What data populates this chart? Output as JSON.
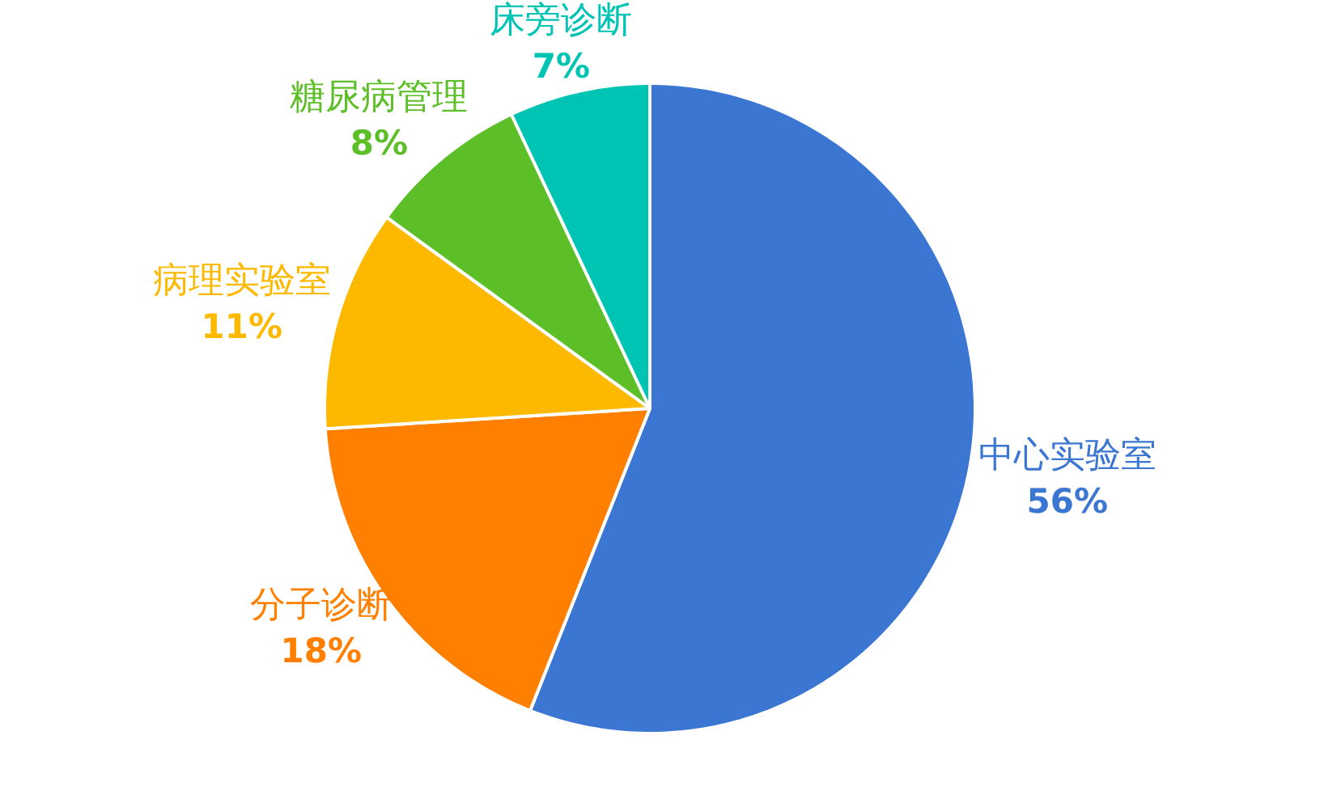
{
  "chart_data": {
    "type": "pie",
    "categories": [
      "中心实验室",
      "分子诊断",
      "病理实验室",
      "糖尿病管理",
      "床旁诊断"
    ],
    "values": [
      56,
      18,
      11,
      8,
      7
    ],
    "colors": [
      "#3a76d2",
      "#ff7f00",
      "#fdb800",
      "#5dbf27",
      "#00c4b3"
    ],
    "value_labels": [
      "56%",
      "18%",
      "11%",
      "8%",
      "7%"
    ]
  }
}
